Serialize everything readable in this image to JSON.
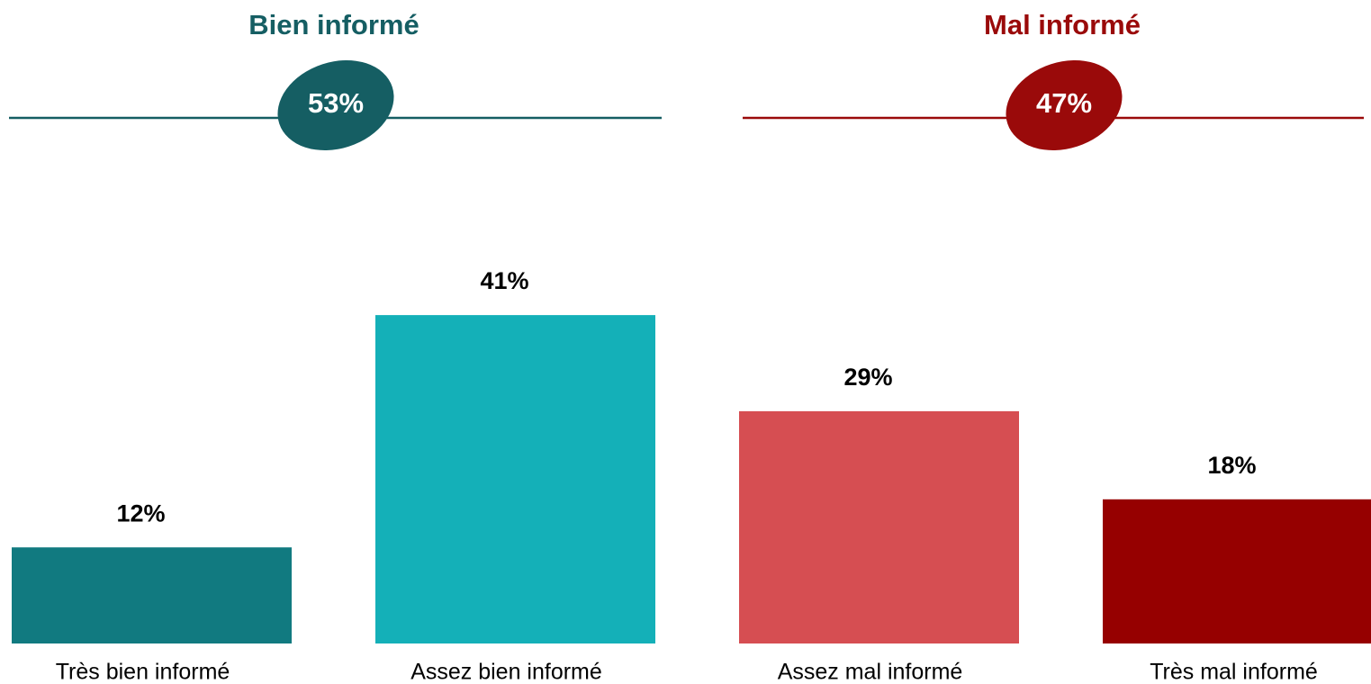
{
  "chart_data": {
    "type": "bar",
    "groups": [
      {
        "title": "Bien informé",
        "value": 53,
        "value_label": "53%",
        "color": "#155e63"
      },
      {
        "title": "Mal informé",
        "value": 47,
        "value_label": "47%",
        "color": "#9a0a0a"
      }
    ],
    "categories": [
      "Très bien informé",
      "Assez bien informé",
      "Assez mal informé",
      "Très mal informé"
    ],
    "values": [
      12,
      41,
      29,
      18
    ],
    "value_labels": [
      "12%",
      "41%",
      "29%",
      "18%"
    ],
    "colors": [
      "#117a80",
      "#14b0b8",
      "#d64e52",
      "#960000"
    ]
  }
}
